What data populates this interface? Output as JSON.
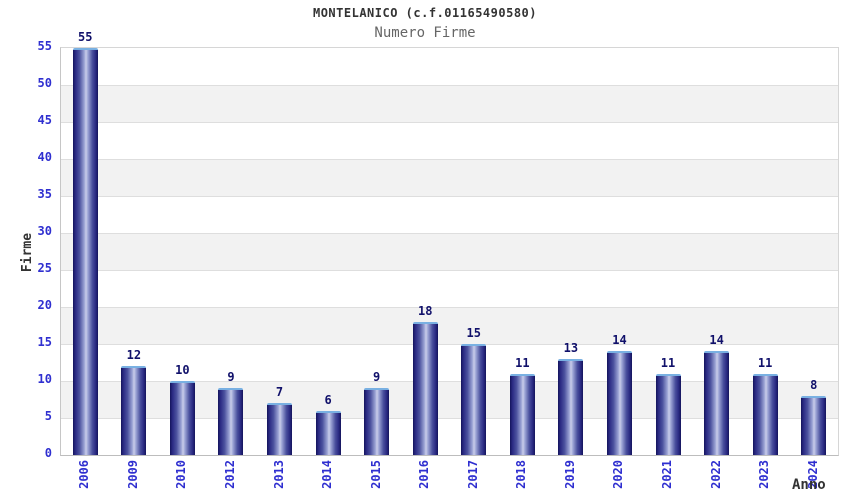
{
  "header": {
    "title": "MONTELANICO (c.f.01165490580)",
    "subtitle": "Numero Firme"
  },
  "chart_data": {
    "type": "bar",
    "title": "MONTELANICO (c.f.01165490580)",
    "subtitle": "Numero Firme",
    "xlabel": "Anno",
    "ylabel": "Firme",
    "categories": [
      "2006",
      "2009",
      "2010",
      "2012",
      "2013",
      "2014",
      "2015",
      "2016",
      "2017",
      "2018",
      "2019",
      "2020",
      "2021",
      "2022",
      "2023",
      "2024"
    ],
    "values": [
      55,
      12,
      10,
      9,
      7,
      6,
      9,
      18,
      15,
      11,
      13,
      14,
      11,
      14,
      11,
      8
    ],
    "ylim": [
      0,
      55
    ],
    "ytick_step": 5,
    "yticks": [
      0,
      5,
      10,
      15,
      20,
      25,
      30,
      35,
      40,
      45,
      50,
      55
    ],
    "grid": true,
    "banded_background": true,
    "legend": "none",
    "colors": {
      "tick_label": "#2f2fd0",
      "value_label": "#10106a",
      "band_gray": "#f2f2f2",
      "gridline": "#dedede",
      "bar_edge_dark": "#14145c",
      "bar_mid": "#4b519e",
      "bar_highlight": "#c9cdea",
      "bar_top_cap": "#79b0e2",
      "title_color": "#333333",
      "subtitle_color": "#666666"
    }
  }
}
